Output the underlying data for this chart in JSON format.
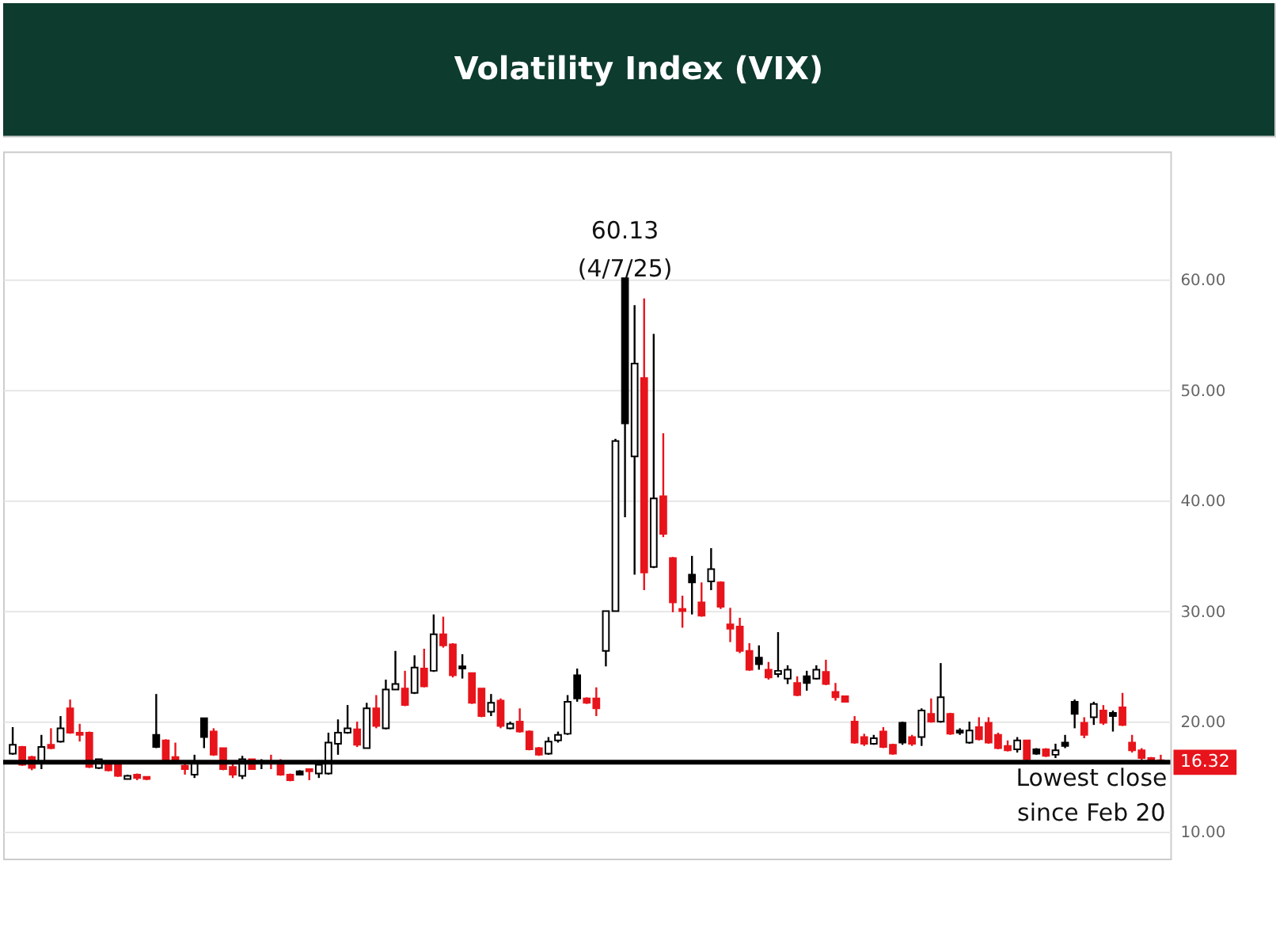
{
  "chart_data": {
    "type": "candlestick",
    "title": "Volatility Index (VIX)",
    "categories": [
      null,
      null,
      null,
      null,
      null,
      null,
      null,
      null,
      null,
      null,
      null,
      null,
      null,
      null,
      null,
      null,
      null,
      null,
      null,
      null,
      null,
      null,
      null,
      null,
      null,
      null,
      null,
      null,
      null,
      null,
      null,
      null,
      null,
      null,
      null,
      null,
      null,
      null,
      null,
      null,
      null,
      null,
      null,
      null,
      null,
      null,
      null,
      null,
      null,
      null,
      null,
      null,
      null,
      null,
      null,
      null,
      null,
      null,
      null,
      null,
      null,
      null,
      null,
      null,
      null,
      null,
      null,
      null,
      null,
      null,
      null,
      null,
      null,
      null,
      null,
      null,
      null,
      null,
      null,
      null,
      null,
      null,
      null,
      null,
      null,
      null,
      null,
      null,
      null,
      null,
      null,
      null,
      null,
      null,
      null,
      null,
      null,
      null,
      null,
      null,
      null,
      null,
      null,
      null,
      null,
      null,
      null,
      null,
      null,
      null,
      null,
      null,
      null,
      null,
      null,
      null,
      null,
      null,
      null,
      null,
      null
    ],
    "ohlc": [
      [
        17.1,
        19.5,
        17.0,
        17.9
      ],
      [
        17.7,
        17.8,
        16.0,
        16.1
      ],
      [
        16.8,
        16.9,
        15.6,
        15.8
      ],
      [
        16.4,
        18.8,
        15.7,
        17.7
      ],
      [
        17.9,
        19.4,
        17.5,
        17.6
      ],
      [
        18.2,
        20.5,
        18.1,
        19.4
      ],
      [
        21.2,
        22.0,
        18.9,
        19.0
      ],
      [
        19.0,
        19.8,
        18.2,
        18.8
      ],
      [
        19.0,
        19.1,
        15.8,
        15.9
      ],
      [
        15.8,
        16.6,
        15.7,
        16.6
      ],
      [
        16.2,
        16.3,
        15.5,
        15.6
      ],
      [
        16.4,
        16.4,
        15.0,
        15.1
      ],
      [
        14.8,
        15.2,
        14.8,
        15.1
      ],
      [
        15.2,
        15.3,
        14.7,
        14.9
      ],
      [
        15.0,
        15.0,
        14.7,
        14.8
      ],
      [
        18.8,
        22.5,
        17.6,
        17.7
      ],
      [
        18.3,
        18.4,
        16.2,
        16.3
      ],
      [
        16.8,
        18.1,
        16.3,
        16.5
      ],
      [
        16.0,
        16.4,
        15.2,
        15.7
      ],
      [
        15.2,
        17.0,
        14.9,
        16.4
      ],
      [
        20.3,
        20.3,
        17.6,
        18.6
      ],
      [
        19.1,
        19.4,
        16.9,
        17.0
      ],
      [
        17.6,
        17.6,
        15.6,
        15.7
      ],
      [
        15.9,
        16.3,
        14.9,
        15.2
      ],
      [
        15.1,
        16.9,
        14.8,
        16.6
      ],
      [
        16.6,
        16.6,
        15.7,
        15.7
      ],
      [
        16.3,
        16.6,
        15.7,
        16.2
      ],
      [
        16.4,
        17.0,
        15.7,
        16.2
      ],
      [
        16.3,
        16.6,
        15.1,
        15.2
      ],
      [
        15.2,
        15.3,
        14.6,
        14.7
      ],
      [
        15.5,
        15.6,
        15.2,
        15.2
      ],
      [
        15.7,
        15.7,
        14.7,
        15.5
      ],
      [
        15.3,
        16.5,
        14.9,
        16.1
      ],
      [
        15.3,
        19.0,
        15.2,
        18.1
      ],
      [
        18.0,
        20.2,
        17.0,
        19.0
      ],
      [
        19.0,
        21.5,
        18.9,
        19.4
      ],
      [
        19.3,
        20.0,
        17.7,
        17.9
      ],
      [
        17.6,
        21.7,
        17.6,
        21.2
      ],
      [
        21.2,
        22.4,
        19.4,
        19.6
      ],
      [
        19.4,
        23.8,
        19.3,
        22.9
      ],
      [
        22.9,
        26.4,
        22.9,
        23.4
      ],
      [
        23.0,
        24.6,
        21.4,
        21.5
      ],
      [
        22.6,
        26.0,
        22.5,
        24.9
      ],
      [
        24.8,
        26.6,
        23.1,
        23.2
      ],
      [
        24.6,
        29.7,
        24.5,
        27.9
      ],
      [
        27.9,
        29.5,
        26.7,
        26.9
      ],
      [
        27.0,
        27.1,
        24.0,
        24.2
      ],
      [
        25.0,
        26.1,
        23.9,
        24.8
      ],
      [
        24.4,
        24.4,
        21.6,
        21.7
      ],
      [
        23.0,
        23.0,
        20.4,
        20.5
      ],
      [
        20.9,
        22.5,
        20.5,
        21.7
      ],
      [
        21.9,
        22.1,
        19.4,
        19.6
      ],
      [
        19.4,
        20.0,
        19.3,
        19.8
      ],
      [
        20.0,
        21.2,
        19.0,
        19.1
      ],
      [
        19.1,
        19.2,
        17.4,
        17.5
      ],
      [
        17.6,
        17.7,
        16.9,
        17.0
      ],
      [
        17.1,
        18.6,
        17.0,
        18.2
      ],
      [
        18.3,
        19.1,
        18.1,
        18.8
      ],
      [
        18.9,
        22.4,
        18.8,
        21.8
      ],
      [
        24.2,
        24.8,
        21.8,
        22.1
      ],
      [
        22.1,
        22.2,
        21.6,
        21.7
      ],
      [
        22.1,
        23.1,
        20.5,
        21.2
      ],
      [
        26.4,
        30.0,
        25.0,
        30.0
      ],
      [
        30.0,
        45.6,
        30.0,
        45.4
      ],
      [
        60.13,
        60.13,
        38.5,
        47.0
      ],
      [
        44.0,
        57.7,
        33.3,
        52.4
      ],
      [
        51.1,
        58.3,
        31.9,
        33.5
      ],
      [
        34.0,
        55.1,
        33.9,
        40.2
      ],
      [
        40.4,
        46.1,
        36.7,
        37.0
      ],
      [
        34.8,
        34.9,
        29.9,
        30.8
      ],
      [
        30.2,
        31.4,
        28.5,
        30.0
      ],
      [
        33.3,
        35.0,
        29.7,
        32.6
      ],
      [
        30.8,
        32.6,
        29.5,
        29.6
      ],
      [
        32.7,
        35.7,
        31.9,
        33.8
      ],
      [
        32.6,
        32.7,
        30.2,
        30.4
      ],
      [
        28.8,
        30.3,
        27.2,
        28.4
      ],
      [
        28.6,
        29.4,
        26.2,
        26.4
      ],
      [
        26.4,
        27.1,
        24.6,
        24.7
      ],
      [
        25.8,
        26.9,
        24.7,
        25.2
      ],
      [
        24.7,
        25.4,
        23.8,
        24.0
      ],
      [
        24.3,
        28.1,
        24.0,
        24.6
      ],
      [
        23.9,
        25.1,
        23.4,
        24.7
      ],
      [
        23.5,
        24.1,
        22.3,
        22.4
      ],
      [
        24.1,
        24.6,
        22.8,
        23.5
      ],
      [
        23.9,
        25.1,
        23.8,
        24.7
      ],
      [
        24.5,
        25.6,
        23.3,
        23.4
      ],
      [
        22.7,
        23.5,
        21.9,
        22.2
      ],
      [
        22.3,
        22.3,
        21.8,
        21.8
      ],
      [
        20.0,
        20.5,
        18.0,
        18.1
      ],
      [
        18.6,
        18.9,
        17.8,
        18.0
      ],
      [
        18.0,
        18.8,
        17.9,
        18.5
      ],
      [
        19.1,
        19.5,
        17.6,
        17.7
      ],
      [
        17.9,
        18.0,
        17.0,
        17.1
      ],
      [
        19.9,
        20.0,
        17.9,
        18.1
      ],
      [
        18.6,
        18.8,
        17.8,
        18.0
      ],
      [
        18.6,
        21.2,
        17.8,
        21.0
      ],
      [
        20.7,
        22.1,
        19.9,
        20.0
      ],
      [
        20.0,
        25.3,
        19.9,
        22.2
      ],
      [
        20.7,
        20.8,
        18.8,
        18.9
      ],
      [
        19.2,
        19.4,
        18.8,
        19.0
      ],
      [
        18.1,
        20.0,
        18.0,
        19.2
      ],
      [
        19.5,
        20.4,
        18.3,
        18.4
      ],
      [
        19.9,
        20.4,
        18.0,
        18.1
      ],
      [
        18.8,
        19.0,
        17.5,
        17.6
      ],
      [
        17.8,
        18.3,
        17.3,
        17.4
      ],
      [
        17.5,
        18.6,
        17.2,
        18.3
      ],
      [
        18.3,
        18.3,
        16.5,
        16.6
      ],
      [
        17.5,
        17.6,
        17.0,
        17.1
      ],
      [
        17.5,
        17.6,
        16.8,
        16.9
      ],
      [
        17.0,
        18.0,
        16.7,
        17.4
      ],
      [
        18.1,
        18.8,
        17.6,
        17.8
      ],
      [
        21.8,
        22.0,
        19.4,
        20.7
      ],
      [
        19.9,
        20.4,
        18.5,
        18.8
      ],
      [
        20.4,
        21.8,
        19.7,
        21.6
      ],
      [
        21.0,
        21.5,
        19.7,
        19.9
      ],
      [
        20.8,
        21.0,
        19.1,
        20.5
      ],
      [
        21.3,
        22.6,
        19.6,
        19.7
      ],
      [
        18.1,
        18.8,
        17.2,
        17.4
      ],
      [
        17.4,
        17.6,
        16.5,
        16.7
      ],
      [
        16.7,
        16.8,
        16.3,
        16.4
      ],
      [
        16.5,
        17.0,
        16.2,
        16.32
      ]
    ],
    "colors": [
      "#ffffff",
      "#e8141b",
      "#e8141b",
      "#ffffff",
      "#e8141b",
      "#ffffff",
      "#e8141b",
      "#e8141b",
      "#e8141b",
      "#ffffff",
      "#e8141b",
      "#e8141b",
      "#ffffff",
      "#e8141b",
      "#e8141b",
      "#000000",
      "#e8141b",
      "#e8141b",
      "#e8141b",
      "#ffffff",
      "#000000",
      "#e8141b",
      "#e8141b",
      "#e8141b",
      "#ffffff",
      "#e8141b",
      "#000000",
      "#e8141b",
      "#e8141b",
      "#e8141b",
      "#000000",
      "#e8141b",
      "#ffffff",
      "#ffffff",
      "#ffffff",
      "#ffffff",
      "#e8141b",
      "#ffffff",
      "#e8141b",
      "#ffffff",
      "#ffffff",
      "#e8141b",
      "#ffffff",
      "#e8141b",
      "#ffffff",
      "#e8141b",
      "#e8141b",
      "#000000",
      "#e8141b",
      "#e8141b",
      "#ffffff",
      "#e8141b",
      "#ffffff",
      "#e8141b",
      "#e8141b",
      "#e8141b",
      "#ffffff",
      "#ffffff",
      "#ffffff",
      "#000000",
      "#e8141b",
      "#e8141b",
      "#ffffff",
      "#ffffff",
      "#000000",
      "#ffffff",
      "#e8141b",
      "#ffffff",
      "#e8141b",
      "#e8141b",
      "#e8141b",
      "#000000",
      "#e8141b",
      "#ffffff",
      "#e8141b",
      "#e8141b",
      "#e8141b",
      "#e8141b",
      "#000000",
      "#e8141b",
      "#ffffff",
      "#ffffff",
      "#e8141b",
      "#000000",
      "#ffffff",
      "#e8141b",
      "#e8141b",
      "#e8141b",
      "#e8141b",
      "#e8141b",
      "#ffffff",
      "#e8141b",
      "#e8141b",
      "#000000",
      "#e8141b",
      "#ffffff",
      "#e8141b",
      "#ffffff",
      "#e8141b",
      "#000000",
      "#ffffff",
      "#e8141b",
      "#e8141b",
      "#e8141b",
      "#e8141b",
      "#ffffff",
      "#e8141b",
      "#000000",
      "#e8141b",
      "#ffffff",
      "#000000",
      "#000000",
      "#e8141b",
      "#ffffff",
      "#e8141b",
      "#000000",
      "#e8141b",
      "#e8141b",
      "#e8141b",
      "#e8141b",
      "#e8141b"
    ],
    "ylim": [
      7.6,
      71.6
    ],
    "yticks": [
      {
        "value": 10,
        "label": "10.00"
      },
      {
        "value": 20,
        "label": "20.00"
      },
      {
        "value": 30,
        "label": "30.00"
      },
      {
        "value": 40,
        "label": "40.00"
      },
      {
        "value": 50,
        "label": "50.00"
      },
      {
        "value": 60,
        "label": "60.00"
      }
    ],
    "grid": "y",
    "tick_labels": "y",
    "ref_lines": [
      {
        "axis": "y",
        "value": 16.32,
        "label": "16.32",
        "color": "#000000"
      }
    ],
    "annotations": [
      {
        "text": "60.13\n(4/7/25)",
        "y": 60.13
      },
      "Lowest close\nsince Feb 20"
    ]
  }
}
